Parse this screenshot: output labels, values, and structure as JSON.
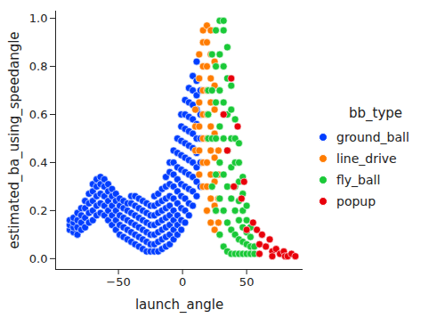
{
  "chart_data": {
    "type": "scatter",
    "x_label": "launch_angle",
    "y_label": "estimated_ba_using_speedangle",
    "legend_title": "bb_type",
    "legend": "right",
    "xlim": [
      -99,
      94
    ],
    "ylim": [
      -0.045,
      1.03
    ],
    "xticks": [
      {
        "value": -50,
        "label": "−50"
      },
      0,
      50
    ],
    "yticks": [
      {
        "value": 0,
        "label": "0.0"
      },
      0.2,
      0.4,
      0.6,
      0.8,
      {
        "value": 1,
        "label": "1.0"
      }
    ],
    "series": [
      {
        "name": "ground_ball",
        "color": "#023eff",
        "x": [
          -88,
          -88,
          -88,
          -85,
          -85,
          -85,
          -85,
          -82,
          -82,
          -82,
          -82,
          -79,
          -79,
          -79,
          -79,
          -76,
          -76,
          -76,
          -76,
          -73,
          -73,
          -73,
          -73,
          -70,
          -70,
          -70,
          -70,
          -70,
          -67,
          -67,
          -67,
          -67,
          -67,
          -64,
          -64,
          -64,
          -64,
          -64,
          -61,
          -61,
          -61,
          -61,
          -61,
          -58,
          -58,
          -58,
          -58,
          -58,
          -55,
          -55,
          -55,
          -55,
          -55,
          -52,
          -52,
          -52,
          -52,
          -52,
          -49,
          -49,
          -49,
          -49,
          -49,
          -46,
          -46,
          -46,
          -46,
          -46,
          -43,
          -43,
          -43,
          -43,
          -43,
          -40,
          -40,
          -40,
          -40,
          -40,
          -40,
          -37,
          -37,
          -37,
          -37,
          -37,
          -37,
          -34,
          -34,
          -34,
          -34,
          -34,
          -34,
          -31,
          -31,
          -31,
          -31,
          -31,
          -31,
          -28,
          -28,
          -28,
          -28,
          -28,
          -28,
          -25,
          -25,
          -25,
          -25,
          -25,
          -25,
          -22,
          -22,
          -22,
          -22,
          -22,
          -22,
          -22,
          -19,
          -19,
          -19,
          -19,
          -19,
          -19,
          -19,
          -16,
          -16,
          -16,
          -16,
          -16,
          -16,
          -16,
          -13,
          -13,
          -13,
          -13,
          -13,
          -13,
          -13,
          -13,
          -10,
          -10,
          -10,
          -10,
          -10,
          -10,
          -10,
          -10,
          -10,
          -7,
          -7,
          -7,
          -7,
          -7,
          -7,
          -7,
          -7,
          -7,
          -4,
          -4,
          -4,
          -4,
          -4,
          -4,
          -4,
          -4,
          -4,
          -1,
          -1,
          -1,
          -1,
          -1,
          -1,
          -1,
          -1,
          -1,
          -1,
          2,
          2,
          2,
          2,
          2,
          2,
          2,
          2,
          2,
          2,
          5,
          5,
          5,
          5,
          5,
          5,
          5,
          5,
          5,
          5,
          8,
          8,
          8,
          8,
          8,
          8,
          8,
          8,
          8,
          8,
          11,
          11,
          11,
          11,
          11,
          11,
          11,
          11,
          11,
          11,
          14,
          14,
          14,
          14,
          14
        ],
        "values": [
          0.12,
          0.14,
          0.16,
          0.11,
          0.13,
          0.15,
          0.17,
          0.1,
          0.13,
          0.16,
          0.19,
          0.12,
          0.15,
          0.18,
          0.21,
          0.13,
          0.17,
          0.21,
          0.24,
          0.15,
          0.19,
          0.23,
          0.27,
          0.16,
          0.2,
          0.24,
          0.28,
          0.31,
          0.18,
          0.22,
          0.26,
          0.3,
          0.33,
          0.19,
          0.23,
          0.27,
          0.31,
          0.34,
          0.18,
          0.22,
          0.26,
          0.3,
          0.33,
          0.16,
          0.2,
          0.24,
          0.28,
          0.31,
          0.14,
          0.18,
          0.22,
          0.26,
          0.29,
          0.12,
          0.16,
          0.2,
          0.24,
          0.27,
          0.1,
          0.14,
          0.18,
          0.22,
          0.25,
          0.09,
          0.13,
          0.17,
          0.21,
          0.24,
          0.08,
          0.12,
          0.16,
          0.2,
          0.23,
          0.07,
          0.11,
          0.15,
          0.19,
          0.23,
          0.26,
          0.06,
          0.1,
          0.14,
          0.18,
          0.22,
          0.26,
          0.05,
          0.09,
          0.13,
          0.17,
          0.21,
          0.25,
          0.04,
          0.08,
          0.12,
          0.16,
          0.2,
          0.24,
          0.03,
          0.07,
          0.11,
          0.15,
          0.19,
          0.23,
          0.03,
          0.06,
          0.1,
          0.14,
          0.18,
          0.22,
          0.03,
          0.06,
          0.1,
          0.14,
          0.18,
          0.22,
          0.26,
          0.03,
          0.07,
          0.11,
          0.15,
          0.19,
          0.23,
          0.27,
          0.04,
          0.08,
          0.12,
          0.16,
          0.2,
          0.24,
          0.29,
          0.05,
          0.09,
          0.13,
          0.17,
          0.21,
          0.25,
          0.3,
          0.34,
          0.06,
          0.1,
          0.14,
          0.18,
          0.22,
          0.26,
          0.31,
          0.36,
          0.4,
          0.08,
          0.12,
          0.16,
          0.2,
          0.25,
          0.3,
          0.35,
          0.4,
          0.45,
          0.1,
          0.14,
          0.18,
          0.23,
          0.28,
          0.33,
          0.38,
          0.44,
          0.5,
          0.12,
          0.16,
          0.21,
          0.26,
          0.31,
          0.37,
          0.43,
          0.49,
          0.55,
          0.6,
          0.15,
          0.2,
          0.25,
          0.3,
          0.36,
          0.42,
          0.48,
          0.54,
          0.6,
          0.66,
          0.18,
          0.23,
          0.29,
          0.35,
          0.41,
          0.47,
          0.53,
          0.59,
          0.65,
          0.71,
          0.22,
          0.28,
          0.34,
          0.4,
          0.46,
          0.52,
          0.58,
          0.64,
          0.7,
          0.76,
          0.26,
          0.32,
          0.38,
          0.44,
          0.5,
          0.56,
          0.62,
          0.68,
          0.74,
          0.82,
          0.3,
          0.4,
          0.5,
          0.6,
          0.7
        ]
      },
      {
        "name": "line_drive",
        "color": "#ff7c00",
        "x": [
          10,
          10,
          10,
          13,
          13,
          13,
          13,
          13,
          13,
          16,
          16,
          16,
          16,
          16,
          16,
          16,
          16,
          19,
          19,
          19,
          19,
          19,
          19,
          19,
          19,
          19,
          22,
          22,
          22,
          22,
          22,
          22,
          22,
          22,
          22,
          25,
          25,
          25,
          25,
          25,
          25,
          25,
          25,
          28,
          28,
          28,
          28
        ],
        "values": [
          0.45,
          0.55,
          0.62,
          0.35,
          0.45,
          0.55,
          0.65,
          0.75,
          0.85,
          0.3,
          0.4,
          0.5,
          0.6,
          0.7,
          0.8,
          0.9,
          0.95,
          0.2,
          0.3,
          0.4,
          0.5,
          0.6,
          0.7,
          0.8,
          0.9,
          0.97,
          0.15,
          0.25,
          0.35,
          0.45,
          0.55,
          0.65,
          0.75,
          0.85,
          0.95,
          0.12,
          0.22,
          0.32,
          0.42,
          0.52,
          0.62,
          0.72,
          0.82,
          0.15,
          0.25,
          0.35,
          0.45
        ]
      },
      {
        "name": "fly_ball",
        "color": "#1ac938",
        "x": [
          20,
          20,
          20,
          23,
          23,
          23,
          23,
          26,
          26,
          26,
          26,
          26,
          26,
          29,
          29,
          29,
          29,
          29,
          29,
          29,
          32,
          32,
          32,
          32,
          32,
          32,
          32,
          32,
          35,
          35,
          35,
          35,
          35,
          35,
          35,
          38,
          38,
          38,
          38,
          38,
          38,
          38,
          41,
          41,
          41,
          41,
          41,
          41,
          41,
          44,
          44,
          44,
          44,
          44,
          44,
          44,
          47,
          47,
          47,
          47,
          47,
          47,
          50,
          50,
          50,
          50,
          50,
          53,
          53,
          53,
          53,
          56,
          56
        ],
        "values": [
          0.5,
          0.6,
          0.7,
          0.3,
          0.5,
          0.7,
          0.85,
          0.2,
          0.35,
          0.5,
          0.65,
          0.8,
          0.95,
          0.1,
          0.25,
          0.4,
          0.55,
          0.7,
          0.85,
          0.99,
          0.05,
          0.2,
          0.35,
          0.5,
          0.65,
          0.8,
          0.95,
          0.99,
          0.03,
          0.15,
          0.3,
          0.45,
          0.6,
          0.75,
          0.88,
          0.02,
          0.12,
          0.25,
          0.38,
          0.5,
          0.62,
          0.72,
          0.02,
          0.1,
          0.2,
          0.3,
          0.4,
          0.5,
          0.58,
          0.02,
          0.08,
          0.16,
          0.24,
          0.32,
          0.4,
          0.48,
          0.02,
          0.07,
          0.13,
          0.2,
          0.27,
          0.34,
          0.02,
          0.06,
          0.11,
          0.16,
          0.22,
          0.02,
          0.05,
          0.09,
          0.13,
          0.02,
          0.05
        ]
      },
      {
        "name": "popup",
        "color": "#e8000b",
        "x": [
          32,
          35,
          38,
          40,
          43,
          46,
          48,
          50,
          55,
          58,
          60,
          60,
          62,
          65,
          68,
          70,
          70,
          73,
          76,
          79,
          80,
          82,
          85,
          88
        ],
        "values": [
          0.6,
          0.45,
          0.75,
          0.3,
          0.55,
          0.25,
          0.32,
          0.12,
          0.15,
          0.12,
          0.06,
          0.02,
          0.1,
          0.05,
          0.08,
          0.03,
          0.01,
          0.04,
          0.02,
          0.03,
          0.01,
          0.01,
          0.02,
          0.01
        ]
      }
    ]
  }
}
